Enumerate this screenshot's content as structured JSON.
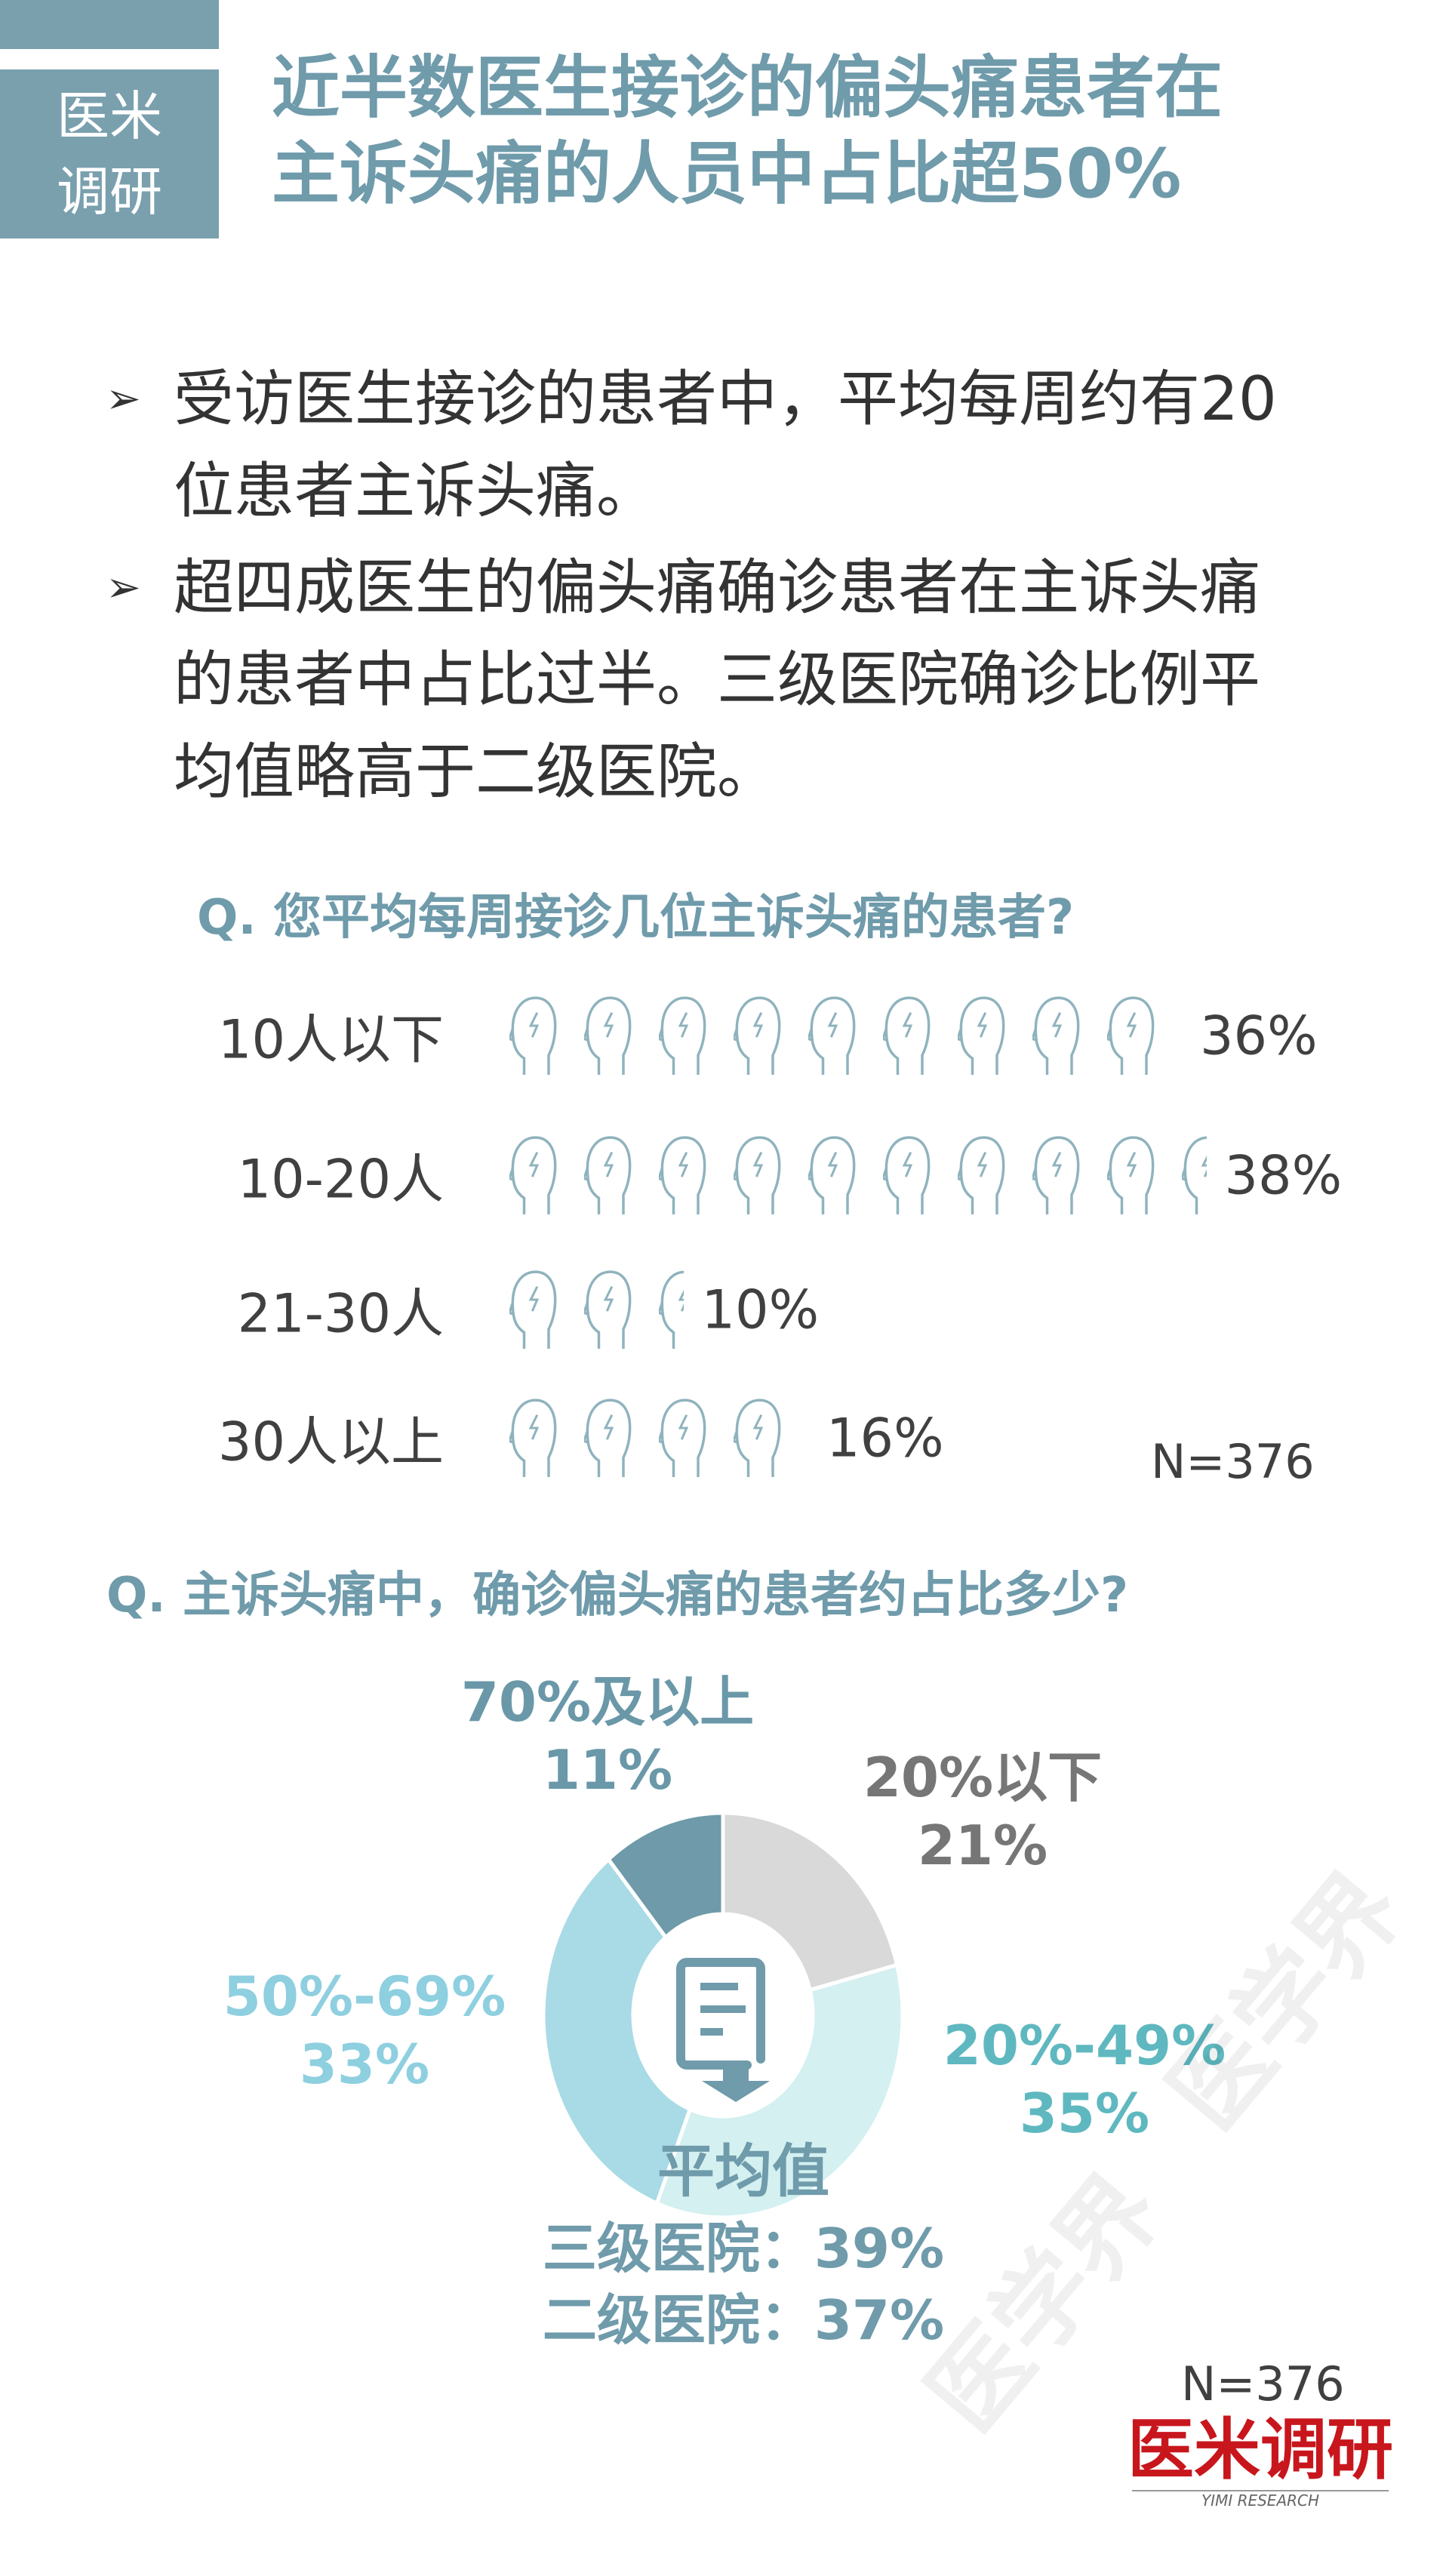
{
  "header": {
    "tag_lines": [
      "医米",
      "调研"
    ],
    "title_lines": [
      "近半数医生接诊的偏头痛患者在",
      "主诉头痛的人员中占比超50%"
    ]
  },
  "bullets": [
    {
      "icon": "arrow-bullet-icon",
      "mark": "➢",
      "lines": [
        "受访医生接诊的患者中，平均每周约有20",
        "位患者主诉头痛。"
      ]
    },
    {
      "icon": "arrow-bullet-icon",
      "mark": "➢",
      "lines": [
        "超四成医生的偏头痛确诊患者在主诉头痛",
        "的患者中占比过半。三级医院确诊比例平",
        "均值略高于二级医院。"
      ]
    }
  ],
  "colors": {
    "accent": "#6f9bab",
    "icon": "#8fb3bd",
    "gray": "#d9d9d9",
    "light": "#d4f0f0",
    "mid": "#a8dbe6",
    "dark": "#6e9aa9",
    "logo_red": "#c8161d"
  },
  "chart_data": [
    {
      "type": "pictograph",
      "title": "Q. 您平均每周接诊几位主诉头痛的患者?",
      "icon": "head-lightning-icon",
      "categories": [
        "10人以下",
        "10-20人",
        "21-30人",
        "30人以上"
      ],
      "values": [
        36,
        38,
        10,
        16
      ],
      "labels": [
        "36%",
        "38%",
        "10%",
        "16%"
      ],
      "note": "N=376"
    },
    {
      "type": "pie",
      "donut": true,
      "title": "Q. 主诉头痛中，确诊偏头痛的患者约占比多少?",
      "center_icon": "document-icon",
      "slices": [
        {
          "name": "20%以下",
          "value": 21,
          "label": "21%",
          "color": "#d9d9d9",
          "text_color": "#767676"
        },
        {
          "name": "20%-49%",
          "value": 35,
          "label": "35%",
          "color": "#d4f0f0",
          "text_color": "#5fb8c0"
        },
        {
          "name": "50%-69%",
          "value": 33,
          "label": "33%",
          "color": "#a8dbe6",
          "text_color": "#8ecfe0"
        },
        {
          "name": "70%及以上",
          "value": 11,
          "label": "11%",
          "color": "#6e9aa9",
          "text_color": "#6a98a8"
        }
      ],
      "average": {
        "title": "平均值",
        "rows": [
          "三级医院：39%",
          "二级医院：37%"
        ]
      },
      "note": "N=376"
    }
  ],
  "logo": {
    "text": "医米调研",
    "sub": "YIMI RESEARCH"
  },
  "watermark": "医学界"
}
